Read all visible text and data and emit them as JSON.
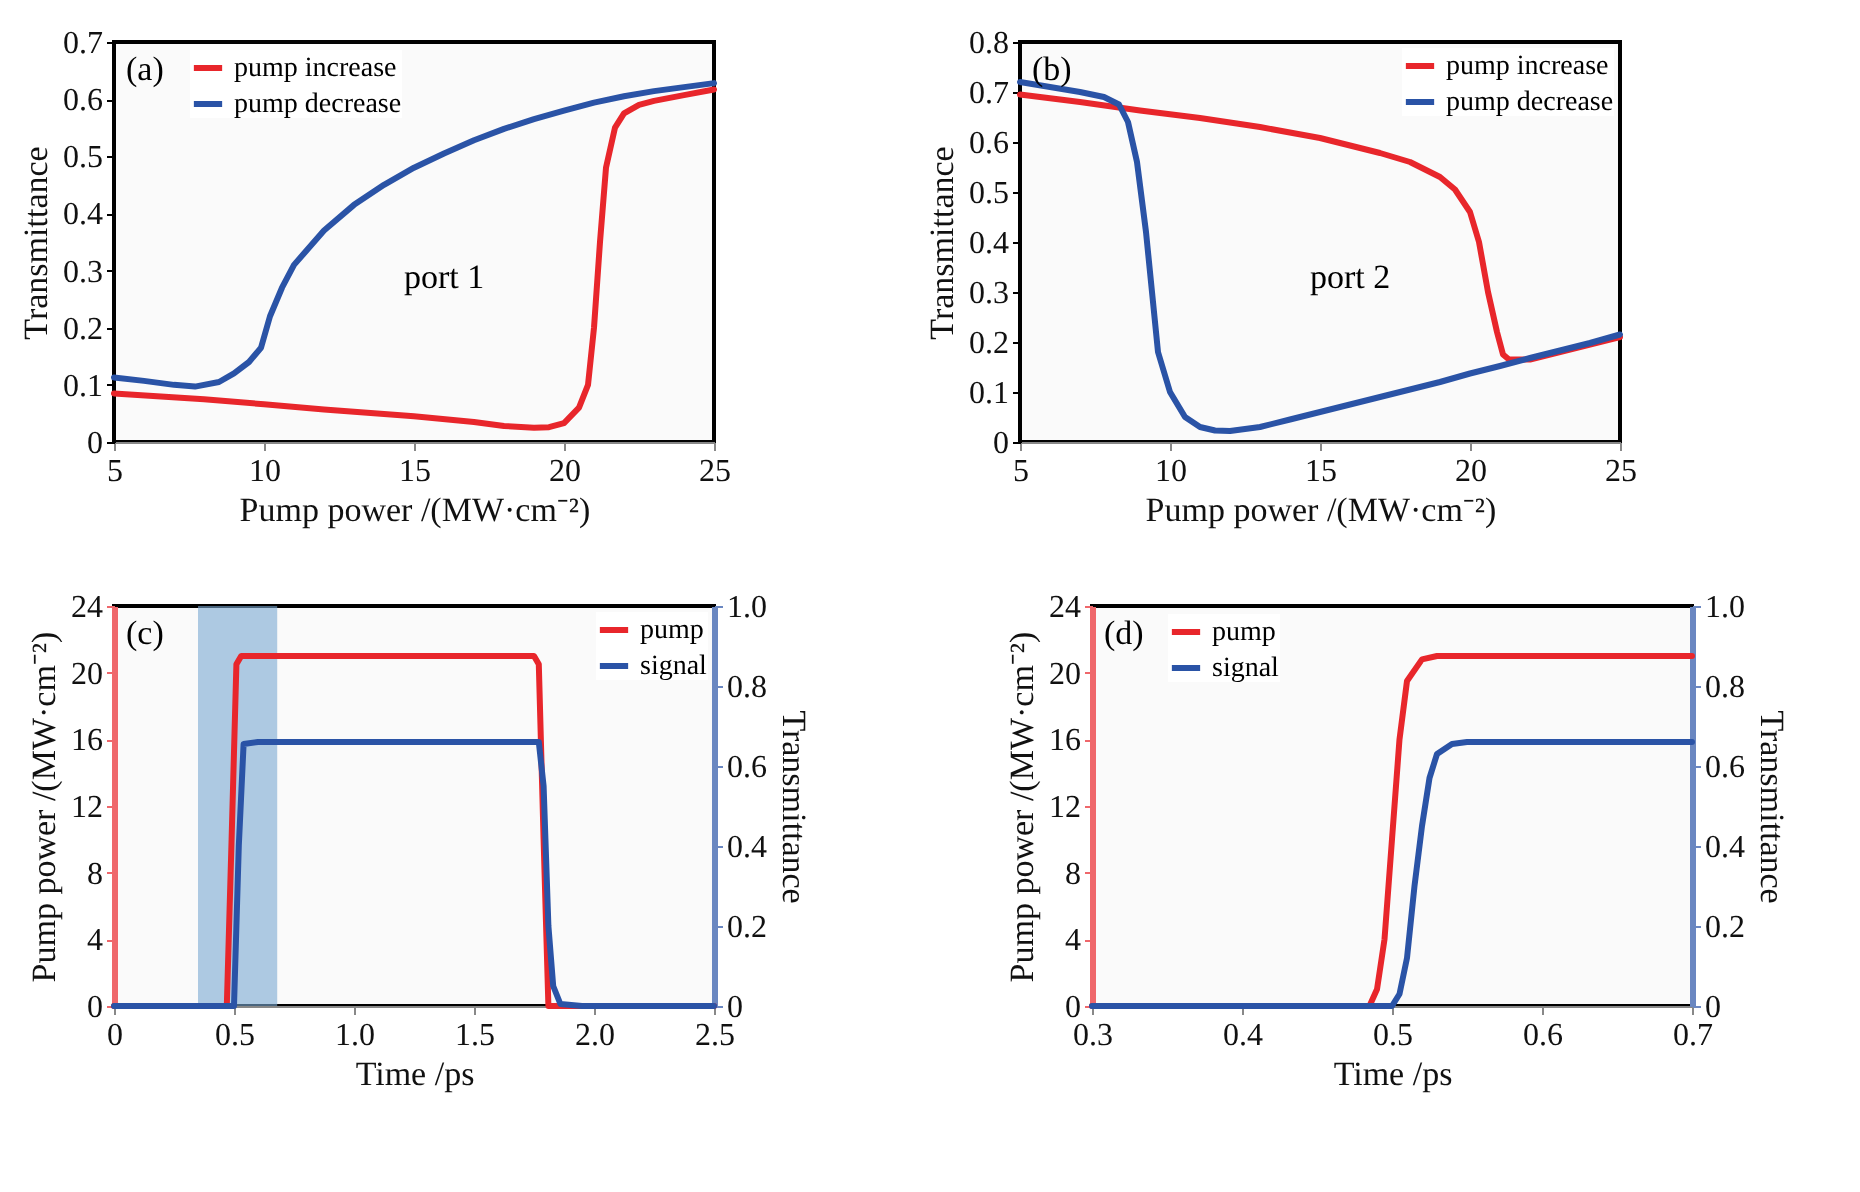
{
  "chart_data": [
    {
      "type": "line",
      "xlabel": "Pump power /(MW·cm⁻²)",
      "ylabel": "Transmittance",
      "xlim": [
        5,
        25
      ],
      "xticks": [
        5,
        10,
        15,
        20,
        25
      ],
      "ylim": [
        0,
        0.7
      ],
      "yticks": [
        0,
        0.1,
        0.2,
        0.3,
        0.4,
        0.5,
        0.6,
        0.7
      ],
      "legend": "top left",
      "annotations": [
        "(a)",
        "port 1"
      ],
      "series": [
        {
          "name": "pump increase",
          "color": "#e8262b",
          "x": [
            5,
            8,
            10,
            12,
            15,
            17,
            18,
            19,
            19.5,
            20,
            20.5,
            20.8,
            21,
            21.2,
            21.4,
            21.7,
            22,
            22.5,
            23,
            24,
            25
          ],
          "values": [
            0.085,
            0.075,
            0.066,
            0.057,
            0.045,
            0.035,
            0.028,
            0.025,
            0.026,
            0.033,
            0.06,
            0.1,
            0.2,
            0.35,
            0.48,
            0.55,
            0.575,
            0.59,
            0.597,
            0.607,
            0.617
          ]
        },
        {
          "name": "pump decrease",
          "color": "#2a53a6",
          "x": [
            5,
            6,
            7,
            7.7,
            8.5,
            9,
            9.5,
            9.9,
            10.2,
            10.6,
            11,
            12,
            13,
            14,
            15,
            16,
            17,
            18,
            19,
            20,
            21,
            22,
            23,
            24,
            25
          ],
          "values": [
            0.113,
            0.107,
            0.1,
            0.097,
            0.105,
            0.12,
            0.14,
            0.165,
            0.22,
            0.27,
            0.31,
            0.37,
            0.415,
            0.45,
            0.48,
            0.505,
            0.528,
            0.548,
            0.565,
            0.58,
            0.594,
            0.605,
            0.614,
            0.621,
            0.628
          ]
        }
      ]
    },
    {
      "type": "line",
      "xlabel": "Pump power /(MW·cm⁻²)",
      "ylabel": "Transmittance",
      "xlim": [
        5,
        25
      ],
      "xticks": [
        5,
        10,
        15,
        20,
        25
      ],
      "ylim": [
        0,
        0.8
      ],
      "yticks": [
        0,
        0.1,
        0.2,
        0.3,
        0.4,
        0.5,
        0.6,
        0.7,
        0.8
      ],
      "legend": "top right",
      "annotations": [
        "(b)",
        "port 2"
      ],
      "series": [
        {
          "name": "pump increase",
          "color": "#e8262b",
          "x": [
            5,
            7,
            9,
            11,
            13,
            15,
            17,
            18,
            19,
            19.5,
            20,
            20.3,
            20.6,
            20.9,
            21.1,
            21.3,
            22,
            23,
            24,
            25
          ],
          "values": [
            0.695,
            0.68,
            0.663,
            0.648,
            0.63,
            0.608,
            0.578,
            0.56,
            0.53,
            0.505,
            0.46,
            0.4,
            0.3,
            0.22,
            0.175,
            0.165,
            0.165,
            0.18,
            0.195,
            0.21
          ]
        },
        {
          "name": "pump decrease",
          "color": "#2a53a6",
          "x": [
            5,
            6,
            7,
            7.8,
            8.3,
            8.6,
            8.9,
            9.2,
            9.4,
            9.6,
            10,
            10.5,
            11,
            11.5,
            12,
            13,
            14,
            15,
            16,
            17,
            18,
            19,
            20,
            21,
            22,
            23,
            24,
            25
          ],
          "values": [
            0.72,
            0.71,
            0.7,
            0.69,
            0.675,
            0.64,
            0.56,
            0.42,
            0.3,
            0.18,
            0.1,
            0.05,
            0.03,
            0.023,
            0.022,
            0.03,
            0.045,
            0.06,
            0.075,
            0.09,
            0.105,
            0.12,
            0.137,
            0.152,
            0.168,
            0.183,
            0.198,
            0.215
          ]
        }
      ]
    },
    {
      "type": "line",
      "xlabel": "Time /ps",
      "ylabel": "Pump power /(MW·cm⁻²)",
      "y2label": "Transmittance",
      "xlim": [
        0,
        2.5
      ],
      "xticks": [
        0,
        0.5,
        {
          "value": 1,
          "label": "1.0"
        },
        1.5,
        {
          "value": 2,
          "label": "2.0"
        },
        2.5
      ],
      "ylim": [
        0,
        24
      ],
      "yticks": [
        0,
        4,
        8,
        12,
        16,
        20,
        24
      ],
      "y2lim": [
        0,
        1
      ],
      "y2ticks": [
        0,
        0.2,
        0.4,
        0.6,
        0.8,
        {
          "value": 1,
          "label": "1.0"
        }
      ],
      "legend": "top right",
      "annotations": [
        "(c)"
      ],
      "bands": [
        {
          "axis": "x",
          "from": 0.35,
          "to": 0.68,
          "color": "#7aa9d2"
        }
      ],
      "series": [
        {
          "name": "pump",
          "color": "#e8262b",
          "x": [
            0,
            0.47,
            0.49,
            0.51,
            0.53,
            1.0,
            1.5,
            1.75,
            1.77,
            1.79,
            1.81,
            2.5
          ],
          "values": [
            0,
            0,
            10,
            20.5,
            21,
            21,
            21,
            21,
            20.5,
            10,
            0,
            0
          ]
        },
        {
          "name": "signal",
          "color": "#2a53a6",
          "axis": "y2",
          "x": [
            0,
            0.5,
            0.52,
            0.54,
            0.6,
            1.0,
            1.5,
            1.77,
            1.79,
            1.81,
            1.83,
            1.86,
            1.95,
            2.5
          ],
          "values": [
            0,
            0,
            0.4,
            0.655,
            0.66,
            0.66,
            0.66,
            0.66,
            0.55,
            0.2,
            0.05,
            0.005,
            0,
            0
          ]
        }
      ]
    },
    {
      "type": "line",
      "xlabel": "Time /ps",
      "ylabel": "Pump power /(MW·cm⁻²)",
      "y2label": "Transmittance",
      "xlim": [
        0.3,
        0.7
      ],
      "xticks": [
        0.3,
        0.4,
        0.5,
        0.6,
        0.7
      ],
      "ylim": [
        0,
        24
      ],
      "yticks": [
        0,
        4,
        8,
        12,
        16,
        20,
        24
      ],
      "y2lim": [
        0,
        1
      ],
      "y2ticks": [
        0,
        0.2,
        0.4,
        0.6,
        0.8,
        {
          "value": 1,
          "label": "1.0"
        }
      ],
      "legend": "top left",
      "annotations": [
        "(d)"
      ],
      "series": [
        {
          "name": "pump",
          "color": "#e8262b",
          "x": [
            0.3,
            0.485,
            0.49,
            0.495,
            0.5,
            0.505,
            0.51,
            0.52,
            0.53,
            0.7
          ],
          "values": [
            0,
            0,
            1,
            4,
            10,
            16,
            19.5,
            20.8,
            21,
            21
          ]
        },
        {
          "name": "signal",
          "color": "#2a53a6",
          "axis": "y2",
          "x": [
            0.3,
            0.5,
            0.505,
            0.51,
            0.515,
            0.52,
            0.525,
            0.53,
            0.54,
            0.55,
            0.7
          ],
          "values": [
            0,
            0,
            0.03,
            0.12,
            0.3,
            0.45,
            0.57,
            0.63,
            0.655,
            0.66,
            0.66
          ]
        }
      ]
    }
  ]
}
